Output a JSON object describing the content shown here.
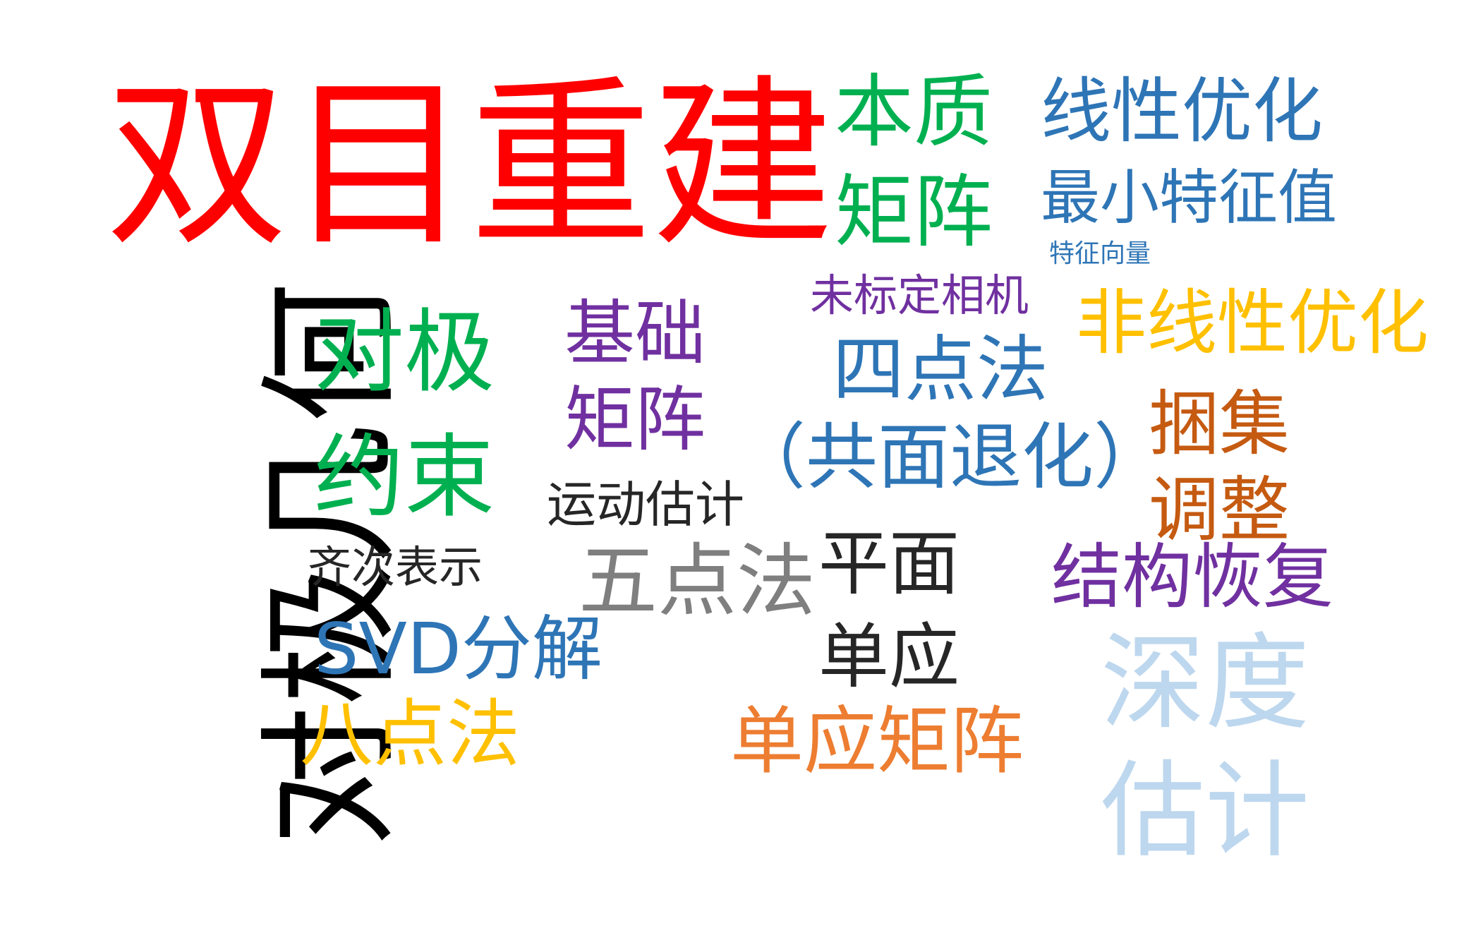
{
  "word_cloud": {
    "words": [
      {
        "id": "shuangmu",
        "lines": [
          "双目重建"
        ],
        "color": "#ff0000"
      },
      {
        "id": "duiji-jihe",
        "lines": [
          "对极几何"
        ],
        "color": "#000000"
      },
      {
        "id": "benzhi-juzhen",
        "lines": [
          "本质",
          "矩阵"
        ],
        "color": "#00b050"
      },
      {
        "id": "xianxing-youhua",
        "lines": [
          "线性优化"
        ],
        "color": "#2e75b6"
      },
      {
        "id": "zuixiao-tezhengzhi",
        "lines": [
          "最小特征值"
        ],
        "color": "#2e75b6"
      },
      {
        "id": "tezheng-xiangliang",
        "lines": [
          "特征向量"
        ],
        "color": "#2e75b6"
      },
      {
        "id": "weibiaoding",
        "lines": [
          "未标定相机"
        ],
        "color": "#7030a0"
      },
      {
        "id": "feixianxing",
        "lines": [
          "非线性优化"
        ],
        "color": "#ffc000"
      },
      {
        "id": "duiji-yueshu",
        "lines": [
          "对极",
          "约束"
        ],
        "color": "#00b050"
      },
      {
        "id": "jichu-juzhen",
        "lines": [
          "基础",
          "矩阵"
        ],
        "color": "#7030a0"
      },
      {
        "id": "sidianfa",
        "lines": [
          "四点法"
        ],
        "color": "#2e75b6"
      },
      {
        "id": "gongmian",
        "lines": [
          "（共面退化）"
        ],
        "color": "#2e75b6"
      },
      {
        "id": "kunji-tiaozheng",
        "lines": [
          "捆集",
          "调整"
        ],
        "color": "#c55a11"
      },
      {
        "id": "yundong",
        "lines": [
          "运动估计"
        ],
        "color": "#262626"
      },
      {
        "id": "qici",
        "lines": [
          "齐次表示"
        ],
        "color": "#262626"
      },
      {
        "id": "wudianfa",
        "lines": [
          "五点法"
        ],
        "color": "#7f7f7f"
      },
      {
        "id": "pingmian-danying",
        "lines": [
          "平面",
          "单应"
        ],
        "color": "#262626"
      },
      {
        "id": "jiegou",
        "lines": [
          "结构恢复"
        ],
        "color": "#7030a0"
      },
      {
        "id": "svd",
        "lines": [
          "SVD分解"
        ],
        "color": "#2e75b6"
      },
      {
        "id": "shendu-guji",
        "lines": [
          "深度",
          "估计"
        ],
        "color": "#bdd7ee"
      },
      {
        "id": "badianfa",
        "lines": [
          "八点法"
        ],
        "color": "#ffc000"
      },
      {
        "id": "danying-juzhen",
        "lines": [
          "单应矩阵"
        ],
        "color": "#ed7d31"
      }
    ]
  }
}
